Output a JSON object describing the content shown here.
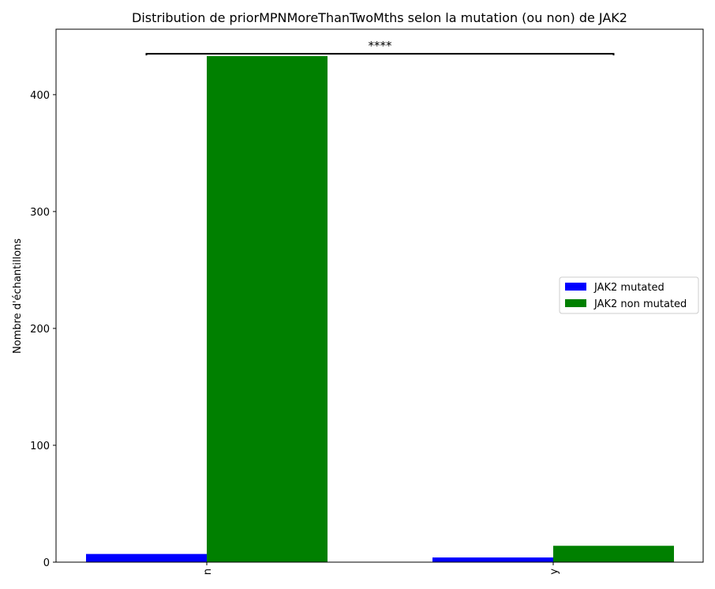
{
  "chart_data": {
    "type": "bar",
    "title": "Distribution de priorMPNMoreThanTwoMths selon la mutation (ou non) de JAK2",
    "xlabel": "",
    "ylabel": "Nombre d'échantillons",
    "categories": [
      "n",
      "y"
    ],
    "series": [
      {
        "name": "JAK2 mutated",
        "values": [
          7,
          4
        ],
        "color": "#0000ff"
      },
      {
        "name": "JAK2 non mutated",
        "values": [
          433,
          14
        ],
        "color": "#008000"
      }
    ],
    "ylim": [
      0,
      456
    ],
    "yticks": [
      0,
      100,
      200,
      300,
      400
    ],
    "grid": false,
    "legend": {
      "position": "right"
    },
    "annotation": {
      "text": "****",
      "from_category": 0,
      "to_category": 1,
      "y": 435
    }
  }
}
